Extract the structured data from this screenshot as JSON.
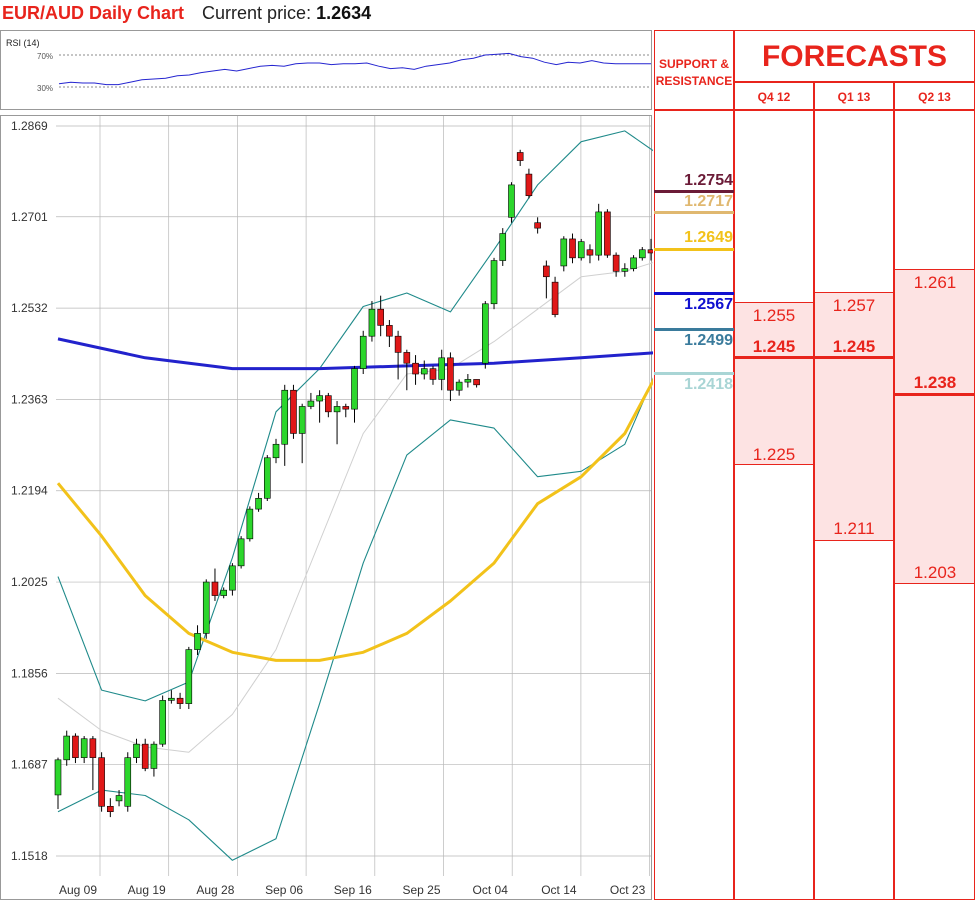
{
  "header": {
    "title": "EUR/AUD Daily Chart",
    "price_label": "Current price:",
    "price_value": "1.2634"
  },
  "rsi": {
    "label": "RSI (14)",
    "level_high": "70%",
    "level_low": "30%",
    "values": [
      34,
      36,
      35,
      35,
      33,
      33,
      36,
      39,
      40,
      41,
      44,
      45,
      48,
      50,
      52,
      50,
      53,
      56,
      57,
      56,
      59,
      60,
      60,
      58,
      59,
      59,
      60,
      56,
      53,
      54,
      52,
      56,
      58,
      60,
      64,
      66,
      70,
      71,
      72,
      68,
      66,
      61,
      58,
      61,
      60,
      63,
      60,
      59,
      59,
      59,
      59
    ]
  },
  "chart_data": {
    "type": "candlestick",
    "title": "EUR/AUD Daily Chart",
    "x_tick_labels": [
      "Aug 09",
      "Aug 19",
      "Aug 28",
      "Sep 06",
      "Sep 16",
      "Sep 25",
      "Oct 04",
      "Oct 14",
      "Oct 23"
    ],
    "y_tick_labels": [
      "1.2869",
      "1.2701",
      "1.2532",
      "1.2363",
      "1.2194",
      "1.2025",
      "1.1856",
      "1.1687",
      "1.1518"
    ],
    "ylim": [
      1.1518,
      1.2869
    ],
    "grid": true,
    "candles": [
      [
        1.1631,
        1.1696,
        1.1605,
        1.17
      ],
      [
        1.1696,
        1.174,
        1.1685,
        1.175
      ],
      [
        1.174,
        1.17,
        1.169,
        1.1745
      ],
      [
        1.17,
        1.1735,
        1.169,
        1.174
      ],
      [
        1.1735,
        1.17,
        1.164,
        1.174
      ],
      [
        1.17,
        1.161,
        1.16,
        1.171
      ],
      [
        1.161,
        1.16,
        1.159,
        1.1625
      ],
      [
        1.162,
        1.163,
        1.161,
        1.164
      ],
      [
        1.161,
        1.17,
        1.16,
        1.171
      ],
      [
        1.17,
        1.1725,
        1.169,
        1.1735
      ],
      [
        1.1725,
        1.168,
        1.1675,
        1.1735
      ],
      [
        1.168,
        1.1725,
        1.1665,
        1.173
      ],
      [
        1.1725,
        1.1806,
        1.172,
        1.1815
      ],
      [
        1.1806,
        1.181,
        1.18,
        1.1825
      ],
      [
        1.181,
        1.18,
        1.179,
        1.182
      ],
      [
        1.18,
        1.19,
        1.179,
        1.1905
      ],
      [
        1.19,
        1.193,
        1.189,
        1.1945
      ],
      [
        1.193,
        1.2025,
        1.192,
        1.203
      ],
      [
        1.2025,
        1.2,
        1.199,
        1.205
      ],
      [
        1.2,
        1.201,
        1.1995,
        1.2015
      ],
      [
        1.201,
        1.2055,
        1.2,
        1.206
      ],
      [
        1.2055,
        1.2105,
        1.205,
        1.211
      ],
      [
        1.2105,
        1.216,
        1.21,
        1.2165
      ],
      [
        1.216,
        1.218,
        1.2155,
        1.219
      ],
      [
        1.218,
        1.2255,
        1.2175,
        1.226
      ],
      [
        1.2255,
        1.228,
        1.2245,
        1.229
      ],
      [
        1.228,
        1.238,
        1.224,
        1.239
      ],
      [
        1.238,
        1.23,
        1.229,
        1.239
      ],
      [
        1.23,
        1.235,
        1.2245,
        1.2355
      ],
      [
        1.235,
        1.236,
        1.2345,
        1.2375
      ],
      [
        1.236,
        1.237,
        1.232,
        1.238
      ],
      [
        1.237,
        1.234,
        1.233,
        1.2375
      ],
      [
        1.234,
        1.235,
        1.228,
        1.236
      ],
      [
        1.235,
        1.2345,
        1.233,
        1.2355
      ],
      [
        1.2345,
        1.242,
        1.232,
        1.2425
      ],
      [
        1.242,
        1.248,
        1.241,
        1.249
      ],
      [
        1.248,
        1.253,
        1.247,
        1.2545
      ],
      [
        1.253,
        1.25,
        1.248,
        1.2555
      ],
      [
        1.25,
        1.248,
        1.246,
        1.251
      ],
      [
        1.248,
        1.245,
        1.24,
        1.249
      ],
      [
        1.245,
        1.243,
        1.238,
        1.2455
      ],
      [
        1.243,
        1.241,
        1.239,
        1.2445
      ],
      [
        1.241,
        1.242,
        1.24,
        1.2435
      ],
      [
        1.242,
        1.24,
        1.239,
        1.2425
      ],
      [
        1.24,
        1.244,
        1.238,
        1.2455
      ],
      [
        1.244,
        1.238,
        1.236,
        1.245
      ],
      [
        1.238,
        1.2395,
        1.237,
        1.24
      ],
      [
        1.2395,
        1.24,
        1.2385,
        1.241
      ],
      [
        1.24,
        1.239,
        1.2385,
        1.24
      ],
      [
        1.243,
        1.254,
        1.242,
        1.2545
      ],
      [
        1.254,
        1.262,
        1.253,
        1.2625
      ],
      [
        1.262,
        1.267,
        1.261,
        1.268
      ],
      [
        1.27,
        1.276,
        1.269,
        1.2765
      ],
      [
        1.282,
        1.2805,
        1.2795,
        1.2825
      ],
      [
        1.278,
        1.274,
        1.2735,
        1.279
      ],
      [
        1.269,
        1.268,
        1.267,
        1.27
      ],
      [
        1.261,
        1.259,
        1.255,
        1.262
      ],
      [
        1.258,
        1.252,
        1.2515,
        1.259
      ],
      [
        1.261,
        1.266,
        1.26,
        1.2665
      ],
      [
        1.266,
        1.2625,
        1.2615,
        1.267
      ],
      [
        1.2625,
        1.2655,
        1.262,
        1.266
      ],
      [
        1.264,
        1.263,
        1.2615,
        1.265
      ],
      [
        1.263,
        1.271,
        1.262,
        1.2725
      ],
      [
        1.271,
        1.263,
        1.2625,
        1.2715
      ],
      [
        1.263,
        1.26,
        1.259,
        1.2635
      ],
      [
        1.26,
        1.2605,
        1.259,
        1.2615
      ],
      [
        1.2605,
        1.2625,
        1.26,
        1.263
      ],
      [
        1.2625,
        1.264,
        1.262,
        1.2645
      ],
      [
        1.264,
        1.2634,
        1.262,
        1.266
      ]
    ],
    "ma_yellow": [
      [
        0,
        1.2208
      ],
      [
        5,
        1.211
      ],
      [
        10,
        1.2
      ],
      [
        15,
        1.193
      ],
      [
        20,
        1.1895
      ],
      [
        25,
        1.188
      ],
      [
        30,
        1.188
      ],
      [
        35,
        1.1895
      ],
      [
        40,
        1.193
      ],
      [
        45,
        1.199
      ],
      [
        50,
        1.206
      ],
      [
        55,
        1.217
      ],
      [
        60,
        1.222
      ],
      [
        65,
        1.23
      ],
      [
        69,
        1.242
      ]
    ],
    "ma_blue": [
      [
        0,
        1.2475
      ],
      [
        10,
        1.244
      ],
      [
        20,
        1.242
      ],
      [
        30,
        1.242
      ],
      [
        40,
        1.2425
      ],
      [
        50,
        1.243
      ],
      [
        60,
        1.244
      ],
      [
        69,
        1.245
      ]
    ],
    "bb_upper": [
      [
        0,
        1.2035
      ],
      [
        5,
        1.1825
      ],
      [
        10,
        1.1805
      ],
      [
        15,
        1.184
      ],
      [
        20,
        1.207
      ],
      [
        25,
        1.234
      ],
      [
        30,
        1.242
      ],
      [
        35,
        1.2535
      ],
      [
        40,
        1.256
      ],
      [
        45,
        1.2525
      ],
      [
        50,
        1.264
      ],
      [
        55,
        1.276
      ],
      [
        60,
        1.284
      ],
      [
        65,
        1.286
      ],
      [
        69,
        1.2815
      ]
    ],
    "bb_lower": [
      [
        0,
        1.16
      ],
      [
        5,
        1.164
      ],
      [
        10,
        1.163
      ],
      [
        15,
        1.1585
      ],
      [
        20,
        1.151
      ],
      [
        25,
        1.155
      ],
      [
        30,
        1.18
      ],
      [
        35,
        1.206
      ],
      [
        40,
        1.226
      ],
      [
        45,
        1.2325
      ],
      [
        50,
        1.231
      ],
      [
        55,
        1.222
      ],
      [
        60,
        1.223
      ],
      [
        65,
        1.228
      ],
      [
        69,
        1.243
      ]
    ],
    "bb_mid": [
      [
        0,
        1.181
      ],
      [
        5,
        1.175
      ],
      [
        10,
        1.172
      ],
      [
        15,
        1.171
      ],
      [
        20,
        1.178
      ],
      [
        25,
        1.19
      ],
      [
        30,
        1.21
      ],
      [
        35,
        1.23
      ],
      [
        40,
        1.241
      ],
      [
        45,
        1.242
      ],
      [
        50,
        1.247
      ],
      [
        55,
        1.253
      ],
      [
        60,
        1.259
      ],
      [
        65,
        1.26
      ],
      [
        69,
        1.262
      ]
    ]
  },
  "support_resistance": {
    "header": "SUPPORT & RESISTANCE",
    "levels": [
      {
        "label": "1.2754",
        "value": 1.2754,
        "color": "#6b1b37"
      },
      {
        "label": "1.2717",
        "value": 1.2717,
        "color": "#e0b870"
      },
      {
        "label": "1.2649",
        "value": 1.2649,
        "color": "#f2c21a"
      },
      {
        "label": "1.2567",
        "value": 1.2567,
        "color": "#1010d0"
      },
      {
        "label": "1.2499",
        "value": 1.2499,
        "color": "#3a7b9c"
      },
      {
        "label": "1.2418",
        "value": 1.2418,
        "color": "#a9d5d5"
      }
    ]
  },
  "forecasts": {
    "title": "FORECASTS",
    "quarters": [
      {
        "label": "Q4 12",
        "high": "1.255",
        "mid": "1.245",
        "low": "1.225"
      },
      {
        "label": "Q1 13",
        "high": "1.257",
        "mid": "1.245",
        "low": "1.211"
      },
      {
        "label": "Q2 13",
        "high": "1.261",
        "mid": "1.238",
        "low": "1.203"
      }
    ]
  }
}
